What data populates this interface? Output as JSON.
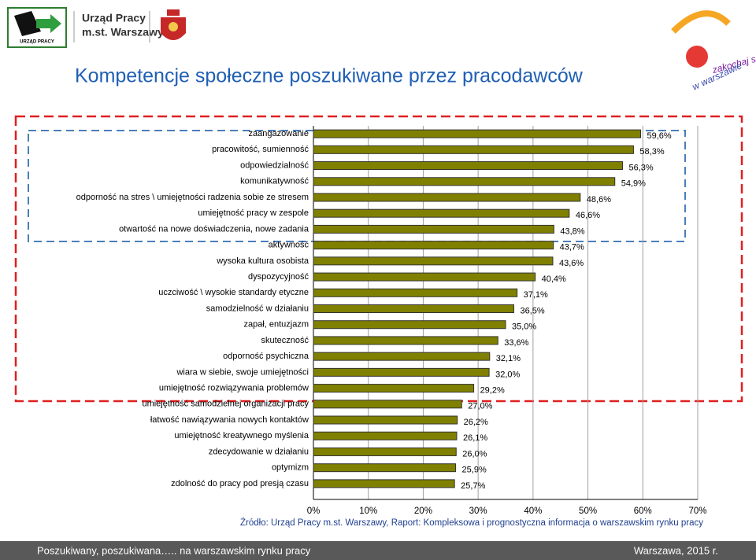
{
  "header": {
    "office_name": "Urząd Pracy",
    "office_city": "m.st. Warszawy",
    "logo_caption": "URZĄD PRACY",
    "brand_line1": "zakochaj się",
    "brand_line2": "w warszawie"
  },
  "chart_data": {
    "type": "bar",
    "orientation": "horizontal",
    "title": "Kompetencje społeczne poszukiwane przez pracodawców",
    "categories": [
      "zaangażowanie",
      "pracowitość, sumienność",
      "odpowiedzialność",
      "komunikatywność",
      "odporność na stres \\ umiejętności radzenia sobie ze stresem",
      "umiejętność pracy w zespole",
      "otwartość na nowe doświadczenia, nowe zadania",
      "aktywność",
      "wysoka kultura osobista",
      "dyspozycyjność",
      "uczciwość \\ wysokie standardy etyczne",
      "samodzielność w działaniu",
      "zapał, entuzjazm",
      "skuteczność",
      "odporność psychiczna",
      "wiara w siebie, swoje umiejętności",
      "umiejętność rozwiązywania problemów",
      "umiejętność samodzielnej organizacji pracy",
      "łatwość nawiązywania nowych kontaktów",
      "umiejętność kreatywnego myślenia",
      "zdecydowanie w działaniu",
      "optymizm",
      "zdolność do pracy pod presją czasu"
    ],
    "values": [
      59.6,
      58.3,
      56.3,
      54.9,
      48.6,
      46.6,
      43.8,
      43.7,
      43.6,
      40.4,
      37.1,
      36.5,
      35.0,
      33.6,
      32.1,
      32.0,
      29.2,
      27.0,
      26.2,
      26.1,
      26.0,
      25.9,
      25.7
    ],
    "value_labels": [
      "59,6%",
      "58,3%",
      "56,3%",
      "54,9%",
      "48,6%",
      "46,6%",
      "43,8%",
      "43,7%",
      "43,6%",
      "40,4%",
      "37,1%",
      "36,5%",
      "35,0%",
      "33,6%",
      "32,1%",
      "32,0%",
      "29,2%",
      "27,0%",
      "26,2%",
      "26,1%",
      "26,0%",
      "25,9%",
      "25,7%"
    ],
    "color": "#808000",
    "xlim": [
      0,
      70
    ],
    "xticks": [
      {
        "value": 0,
        "label": "0%"
      },
      {
        "value": 10,
        "label": "10%"
      },
      {
        "value": 20,
        "label": "20%"
      },
      {
        "value": 30,
        "label": "30%"
      },
      {
        "value": 40,
        "label": "40%"
      },
      {
        "value": 50,
        "label": "50%"
      },
      {
        "value": 60,
        "label": "60%"
      },
      {
        "value": 70,
        "label": "70%"
      }
    ],
    "grid": true,
    "source": "Źródło: Urząd Pracy m.st. Warszawy,  Raport: Kompleksowa i prognostyczna informacja o warszawskim rynku pracy"
  },
  "footer": {
    "left": "Poszukiwany, poszukiwana….. na warszawskim rynku pracy",
    "right": "Warszawa, 2015 r."
  }
}
